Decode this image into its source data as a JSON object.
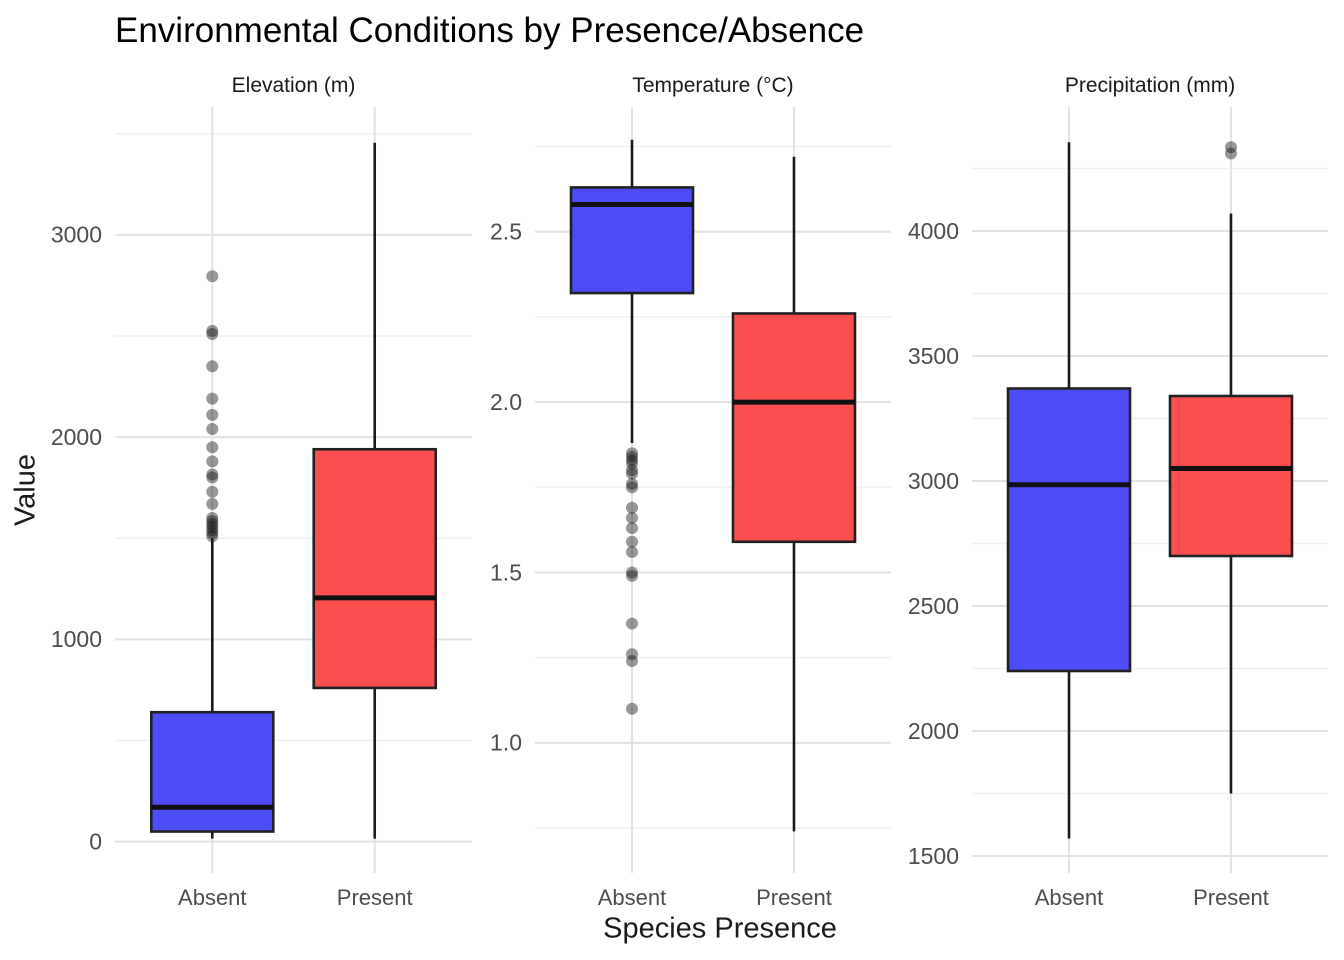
{
  "title": "Environmental Conditions by Presence/Absence",
  "axes": {
    "y_label": "Value",
    "x_label": "Species Presence",
    "x_categories": [
      "Absent",
      "Present"
    ]
  },
  "colors": {
    "absent_fill": "#4C4CF9",
    "present_fill": "#FB4F4F",
    "box_border": "#212121",
    "median_line": "#111111",
    "whisker": "#1a1a1a",
    "outlier": "#1a1a1a",
    "grid_major": "#E2E2E2",
    "grid_minor": "#F0F0F0",
    "tick_text": "#4D4D4D",
    "strip_text": "#1A1A1A",
    "title_text": "#000000"
  },
  "chart_data": [
    {
      "type": "box",
      "facet": "Elevation (m)",
      "categories": [
        "Absent",
        "Present"
      ],
      "ylim": [
        -155,
        3632
      ],
      "yticks": [
        0,
        1000,
        2000,
        3000
      ],
      "ytick_labels": [
        "0",
        "1000",
        "2000",
        "3000"
      ],
      "yticks_minor": [
        500,
        1500,
        2500,
        3500
      ],
      "series": [
        {
          "name": "Absent",
          "whisker_low": 15,
          "q1": 50,
          "median": 170,
          "q3": 640,
          "whisker_high": 1500,
          "outliers": [
            1510,
            1525,
            1540,
            1555,
            1570,
            1585,
            1600,
            1670,
            1730,
            1800,
            1815,
            1880,
            1950,
            2040,
            2110,
            2190,
            2350,
            2510,
            2525,
            2795
          ]
        },
        {
          "name": "Present",
          "whisker_low": 15,
          "q1": 760,
          "median": 1205,
          "q3": 1940,
          "whisker_high": 3455,
          "outliers": []
        }
      ]
    },
    {
      "type": "box",
      "facet": "Temperature (°C)",
      "categories": [
        "Absent",
        "Present"
      ],
      "ylim": [
        0.618,
        2.866
      ],
      "yticks": [
        1.0,
        1.5,
        2.0,
        2.5
      ],
      "ytick_labels": [
        "1.0",
        "1.5",
        "2.0",
        "2.5"
      ],
      "yticks_minor": [
        0.75,
        1.25,
        1.75,
        2.25,
        2.75
      ],
      "series": [
        {
          "name": "Absent",
          "whisker_low": 1.88,
          "q1": 2.32,
          "median": 2.58,
          "q3": 2.63,
          "whisker_high": 2.77,
          "outliers": [
            1.85,
            1.84,
            1.83,
            1.82,
            1.8,
            1.79,
            1.76,
            1.75,
            1.69,
            1.66,
            1.63,
            1.59,
            1.56,
            1.5,
            1.49,
            1.35,
            1.26,
            1.24,
            1.1
          ]
        },
        {
          "name": "Present",
          "whisker_low": 0.74,
          "q1": 1.59,
          "median": 2.0,
          "q3": 2.26,
          "whisker_high": 2.72,
          "outliers": []
        }
      ]
    },
    {
      "type": "box",
      "facet": "Precipitation (mm)",
      "categories": [
        "Absent",
        "Present"
      ],
      "ylim": [
        1432,
        4496
      ],
      "yticks": [
        1500,
        2000,
        2500,
        3000,
        3500,
        4000
      ],
      "ytick_labels": [
        "1500",
        "2000",
        "2500",
        "3000",
        "3500",
        "4000"
      ],
      "yticks_minor": [
        1750,
        2250,
        2750,
        3250,
        3750,
        4250
      ],
      "series": [
        {
          "name": "Absent",
          "whisker_low": 1570,
          "q1": 2240,
          "median": 2985,
          "q3": 3370,
          "whisker_high": 4355,
          "outliers": []
        },
        {
          "name": "Present",
          "whisker_low": 1750,
          "q1": 2700,
          "median": 3050,
          "q3": 3340,
          "whisker_high": 4070,
          "outliers": [
            4310,
            4335
          ]
        }
      ]
    }
  ]
}
